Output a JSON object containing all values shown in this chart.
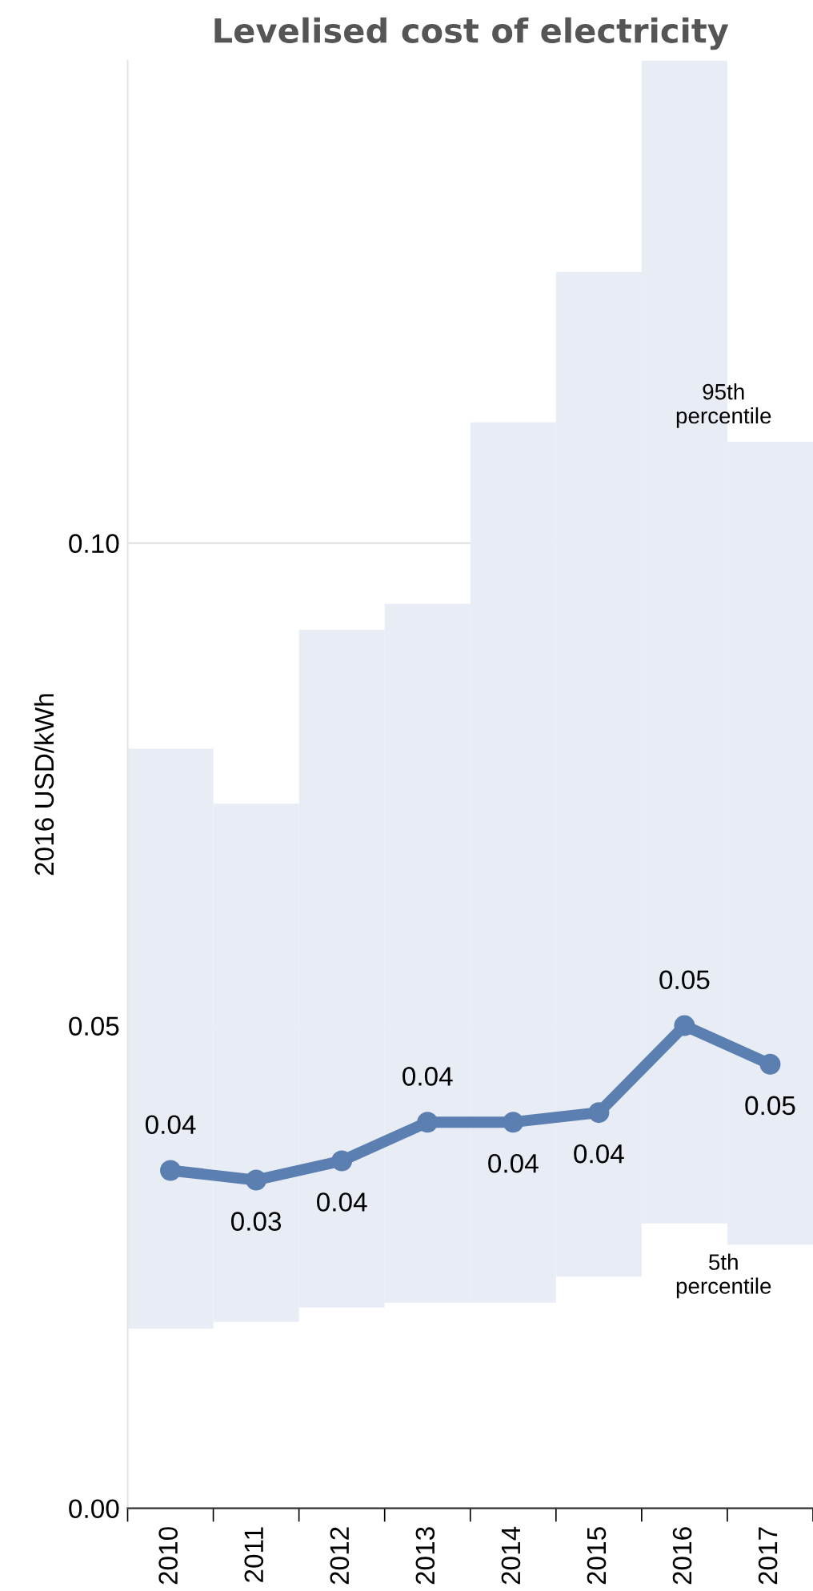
{
  "chart_data": {
    "type": "line",
    "title": "Levelised cost of electricity",
    "ylabel": "2016 USD/kWh",
    "categories": [
      "2010",
      "2011",
      "2012",
      "2013",
      "2014",
      "2015",
      "2016",
      "2017"
    ],
    "series": [
      {
        "type": "bar",
        "color": "#e8ecf5",
        "values": [
          0.0601,
          0.0537,
          0.0702,
          0.0724,
          0.0912,
          0.1041,
          0.1205,
          0.0832
        ],
        "base": [
          0.0186,
          0.0193,
          0.0208,
          0.0213,
          0.0213,
          0.024,
          0.0295,
          0.0273
        ]
      },
      {
        "color": "#5b7fb0",
        "values": [
          0.035,
          0.034,
          0.036,
          0.04,
          0.04,
          0.041,
          0.05,
          0.046
        ],
        "value_labels": [
          "0.04",
          "0.03",
          "0.04",
          "0.04",
          "0.04",
          "0.04",
          "0.05",
          "0.05"
        ]
      }
    ],
    "ylim": [
      0,
      0.15
    ],
    "yticks": [
      {
        "value": 0,
        "label": "0.00"
      },
      {
        "value": 0.05,
        "label": "0.05"
      },
      {
        "value": 0.1,
        "label": "0.10"
      }
    ],
    "grid": "y",
    "marker": "circle",
    "line_style": "solid",
    "annotations": [
      "95th\npercentile",
      "5th\npercentile"
    ]
  }
}
